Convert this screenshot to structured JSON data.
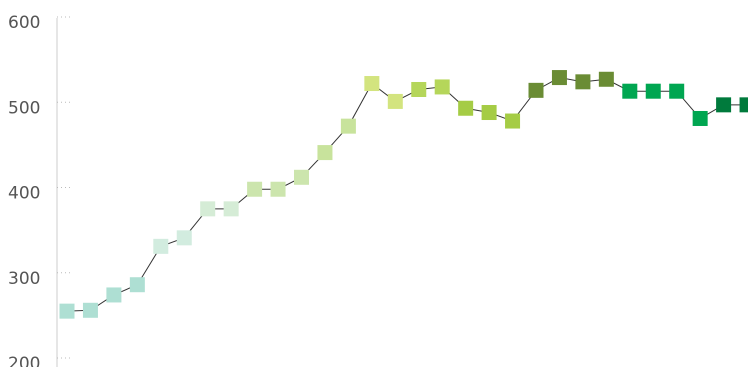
{
  "chart_data": {
    "type": "line",
    "series": [
      {
        "color": "#333333",
        "values": [
          262,
          263,
          281,
          293,
          338,
          348,
          382,
          382,
          405,
          405,
          419,
          448,
          479,
          529,
          508,
          522,
          525,
          500,
          495,
          485,
          521,
          536,
          531,
          534,
          520,
          520,
          520,
          488,
          504,
          504
        ],
        "colors": [
          "#aedfd3",
          "#aedfd3",
          "#aedfd3",
          "#aedfd3",
          "#d2ecdf",
          "#d2ecdf",
          "#d5ecd6",
          "#d5ecd6",
          "#cce5ad",
          "#cce5ad",
          "#cce5ad",
          "#c8e39c",
          "#c8e39c",
          "#d3e47f",
          "#d3e47f",
          "#b5d65a",
          "#b5d65a",
          "#a5cc45",
          "#a5cc45",
          "#a5cc45",
          "#6a8c34",
          "#6a8c34",
          "#6a8c34",
          "#6a8c34",
          "#00a651",
          "#00a651",
          "#00a651",
          "#00a651",
          "#007a3c",
          "#007a3c"
        ]
      }
    ],
    "ylim": [
      200,
      600
    ],
    "yticks": [
      200,
      300,
      400,
      500,
      600
    ]
  }
}
